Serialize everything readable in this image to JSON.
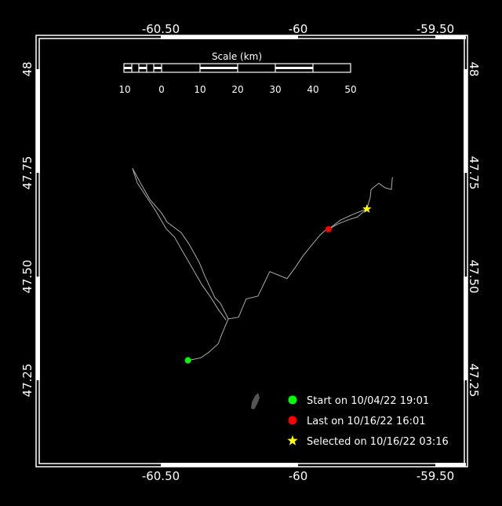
{
  "map": {
    "lon_ticks": [
      "-60.50",
      "-60",
      "-59.50"
    ],
    "lat_ticks": [
      "48",
      "47.75",
      "47.50",
      "47.25"
    ],
    "scale": {
      "title": "Scale (km)",
      "labels": [
        "10",
        "0",
        "10",
        "20",
        "30",
        "40",
        "50"
      ]
    },
    "track": [
      [
        -60.401,
        47.298
      ],
      [
        -60.355,
        47.304
      ],
      [
        -60.326,
        47.317
      ],
      [
        -60.291,
        47.338
      ],
      [
        -60.277,
        47.362
      ],
      [
        -60.26,
        47.389
      ],
      [
        -60.254,
        47.398
      ],
      [
        -60.217,
        47.402
      ],
      [
        -60.189,
        47.446
      ],
      [
        -60.146,
        47.453
      ],
      [
        -60.103,
        47.512
      ],
      [
        -60.04,
        47.495
      ],
      [
        -60.011,
        47.521
      ],
      [
        -59.983,
        47.549
      ],
      [
        -59.96,
        47.568
      ],
      [
        -59.92,
        47.6
      ],
      [
        -59.903,
        47.61
      ],
      [
        -59.889,
        47.614
      ],
      [
        -59.854,
        47.627
      ],
      [
        -59.82,
        47.636
      ],
      [
        -59.783,
        47.644
      ],
      [
        -59.749,
        47.663
      ],
      [
        -59.737,
        47.691
      ],
      [
        -59.734,
        47.71
      ],
      [
        -59.706,
        47.725
      ],
      [
        -59.683,
        47.714
      ],
      [
        -59.66,
        47.71
      ],
      [
        -59.657,
        47.737
      ],
      [
        -59.654,
        47.739
      ]
    ],
    "track_return": [
      [
        -59.749,
        47.663
      ],
      [
        -59.8,
        47.65
      ],
      [
        -59.846,
        47.636
      ],
      [
        -59.889,
        47.614
      ]
    ],
    "track_branch": [
      [
        -60.254,
        47.398
      ],
      [
        -60.283,
        47.436
      ],
      [
        -60.303,
        47.449
      ],
      [
        -60.34,
        47.502
      ],
      [
        -60.36,
        47.534
      ],
      [
        -60.397,
        47.578
      ],
      [
        -60.426,
        47.606
      ],
      [
        -60.477,
        47.631
      ],
      [
        -60.497,
        47.653
      ],
      [
        -60.54,
        47.686
      ],
      [
        -60.577,
        47.729
      ],
      [
        -60.603,
        47.761
      ]
    ],
    "track_branch_return": [
      [
        -60.603,
        47.761
      ],
      [
        -60.585,
        47.725
      ],
      [
        -60.56,
        47.7
      ],
      [
        -60.52,
        47.66
      ],
      [
        -60.48,
        47.615
      ],
      [
        -60.45,
        47.595
      ],
      [
        -60.42,
        47.56
      ],
      [
        -60.385,
        47.52
      ],
      [
        -60.35,
        47.48
      ],
      [
        -60.32,
        47.452
      ],
      [
        -60.29,
        47.42
      ],
      [
        -60.262,
        47.395
      ]
    ],
    "land_color": "#555555",
    "track_color": "#aaaaaa"
  },
  "legend": {
    "start": {
      "label": "Start on 10/04/22 19:01",
      "color": "#00ff00",
      "lon": -60.401,
      "lat": 47.298
    },
    "last": {
      "label": "Last on 10/16/22 16:01",
      "color": "#ff0000",
      "lon": -59.889,
      "lat": 47.614
    },
    "selected": {
      "label": "Selected on 10/16/22 03:16",
      "color": "#ffff00",
      "lon": -59.749,
      "lat": 47.663
    }
  }
}
